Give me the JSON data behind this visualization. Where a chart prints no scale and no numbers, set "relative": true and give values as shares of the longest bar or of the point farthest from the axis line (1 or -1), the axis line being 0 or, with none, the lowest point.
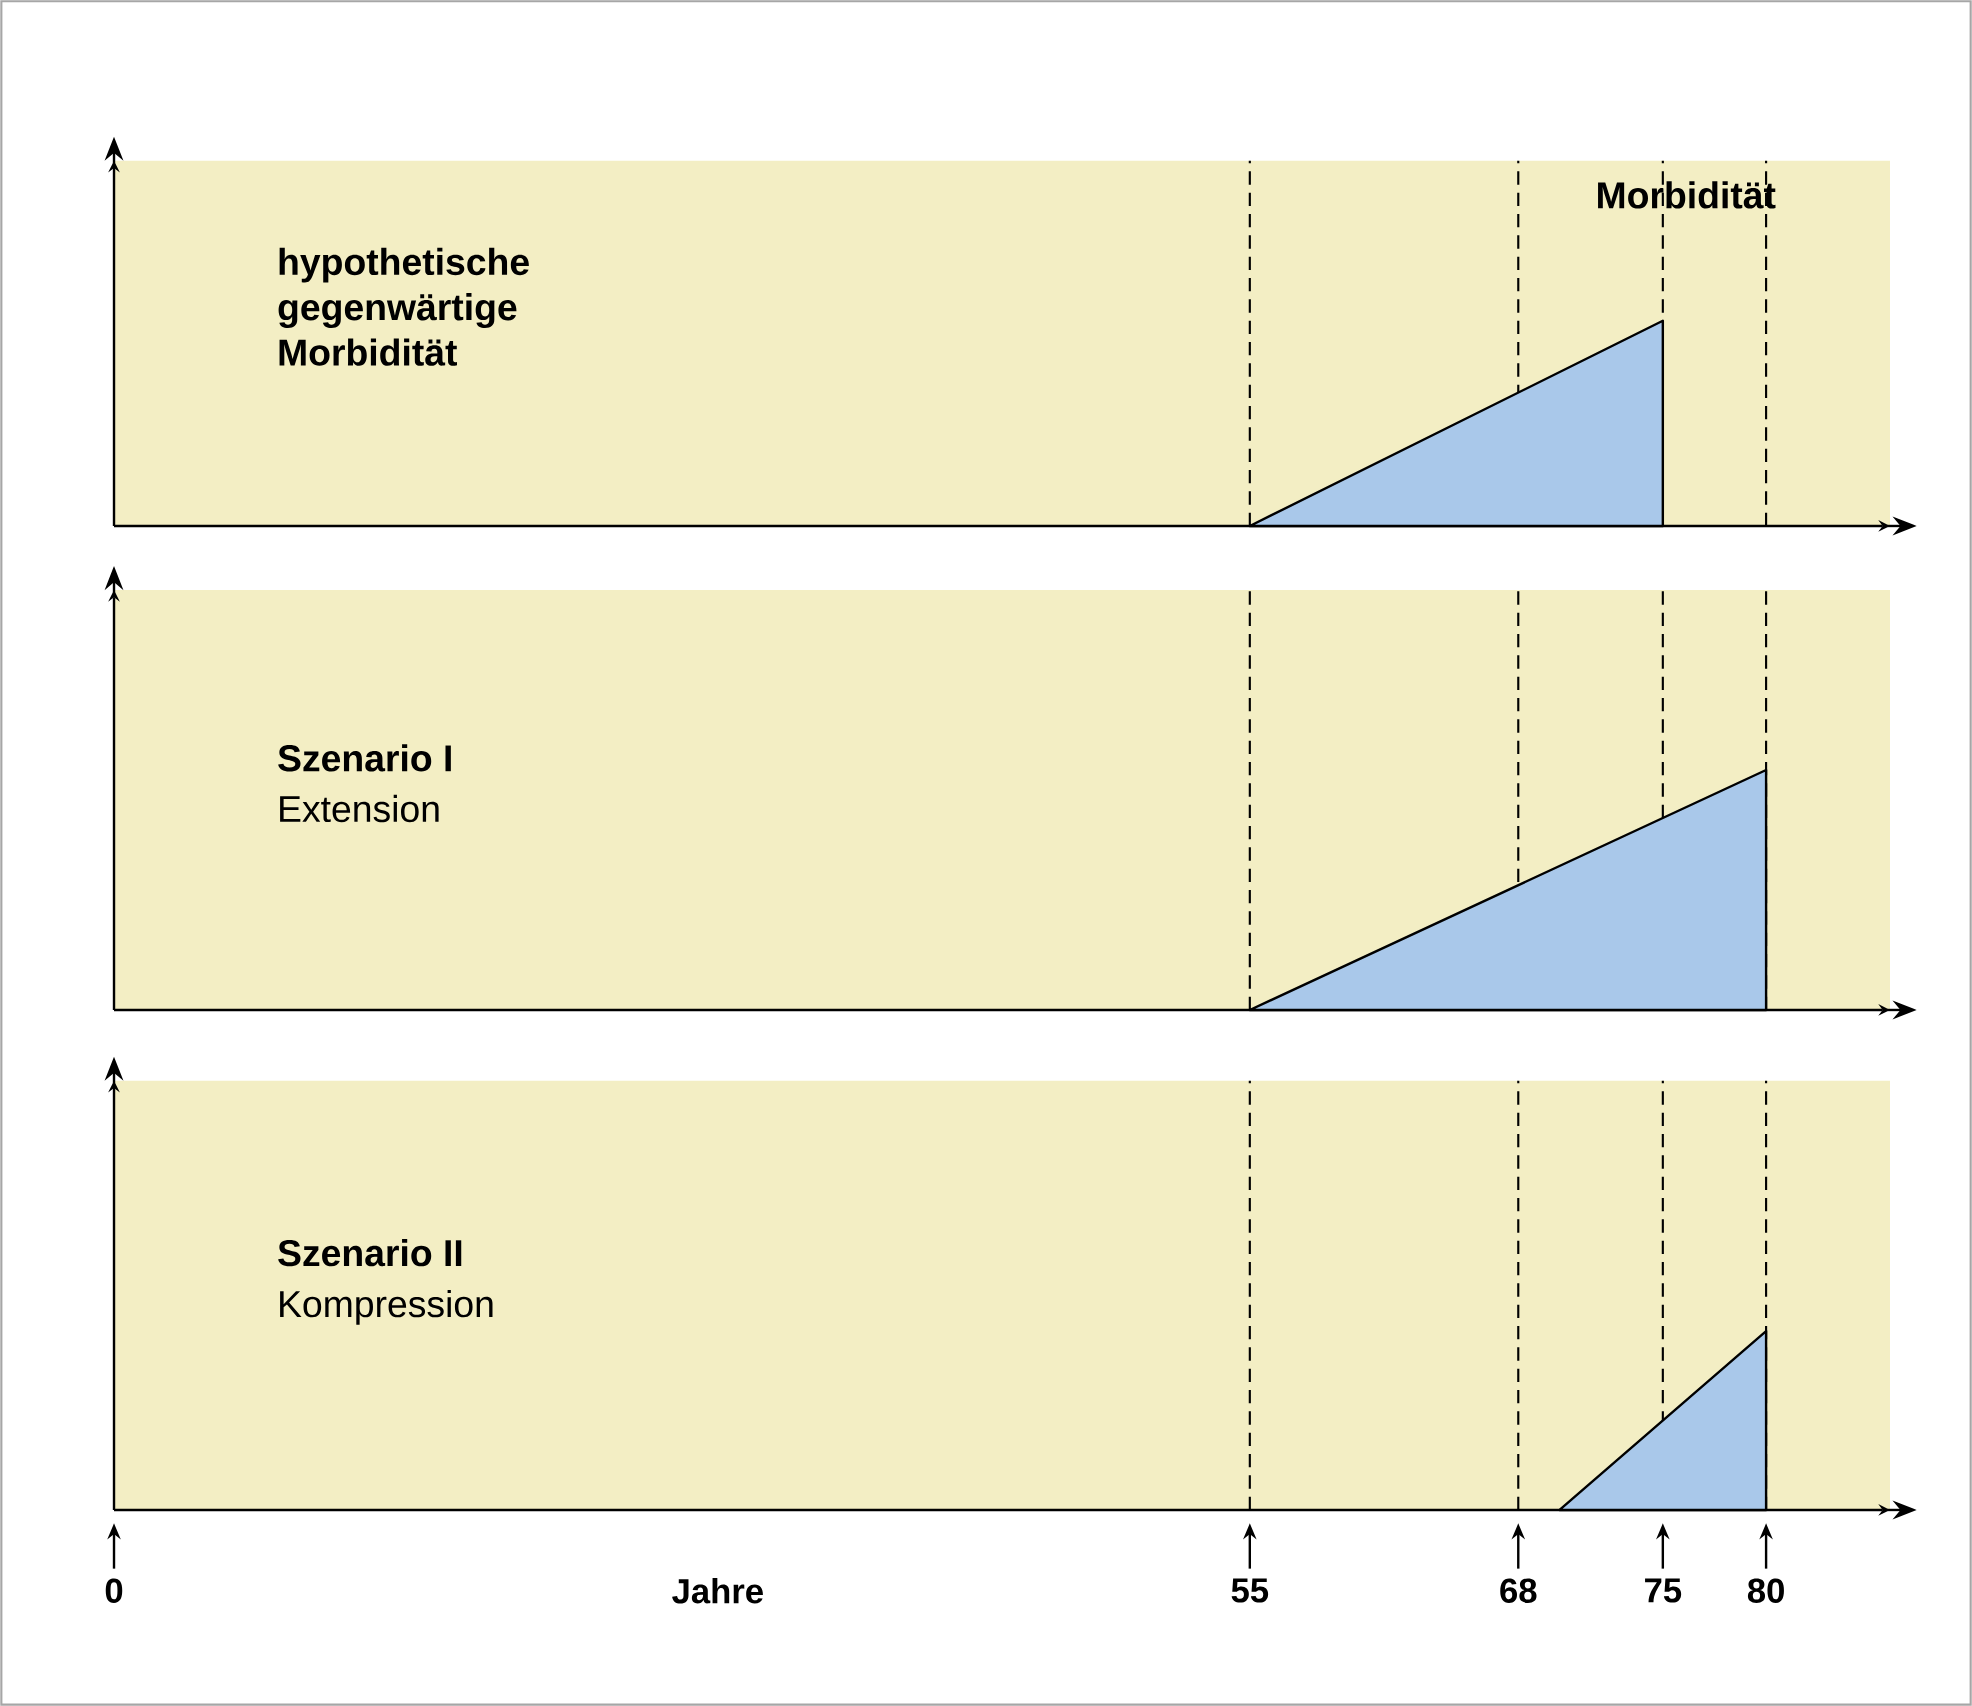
{
  "chart_data": [
    {
      "type": "area",
      "title": "hypothetische gegenwärtige Morbidität",
      "annotations": [
        "Morbidität"
      ],
      "x": [
        55,
        75
      ],
      "values": [
        0,
        1
      ],
      "color": "#a9c8ea",
      "relative": true,
      "xlim": [
        0,
        86
      ],
      "xticks": [
        0,
        55,
        68,
        75,
        80
      ],
      "tick_labels": false,
      "ref_lines": [
        {
          "axis": "x",
          "value": 55,
          "line_style": "dashed"
        },
        {
          "axis": "x",
          "value": 68,
          "line_style": "dashed"
        },
        {
          "axis": "x",
          "value": 75,
          "line_style": "dashed"
        },
        {
          "axis": "x",
          "value": 80,
          "line_style": "dashed"
        }
      ]
    },
    {
      "type": "area",
      "title": "Szenario I",
      "subtitle": "Extension",
      "x": [
        55,
        80
      ],
      "values": [
        0,
        1
      ],
      "color": "#a9c8ea",
      "relative": true,
      "xlim": [
        0,
        86
      ],
      "xticks": [
        0,
        55,
        68,
        75,
        80
      ],
      "tick_labels": false,
      "ref_lines": [
        {
          "axis": "x",
          "value": 55,
          "line_style": "dashed"
        },
        {
          "axis": "x",
          "value": 68,
          "line_style": "dashed"
        },
        {
          "axis": "x",
          "value": 75,
          "line_style": "dashed"
        },
        {
          "axis": "x",
          "value": 80,
          "line_style": "dashed"
        }
      ]
    },
    {
      "type": "area",
      "title": "Szenario II",
      "subtitle": "Kompression",
      "xlabel": "Jahre",
      "x": [
        70,
        80
      ],
      "values": [
        0,
        1
      ],
      "color": "#a9c8ea",
      "relative": true,
      "xlim": [
        0,
        86
      ],
      "xticks": [
        0,
        55,
        68,
        75,
        80
      ],
      "tick_labels": "x",
      "ref_lines": [
        {
          "axis": "x",
          "value": 55,
          "line_style": "dashed"
        },
        {
          "axis": "x",
          "value": 68,
          "line_style": "dashed"
        },
        {
          "axis": "x",
          "value": 75,
          "line_style": "dashed"
        },
        {
          "axis": "x",
          "value": 80,
          "line_style": "dashed"
        }
      ]
    }
  ]
}
